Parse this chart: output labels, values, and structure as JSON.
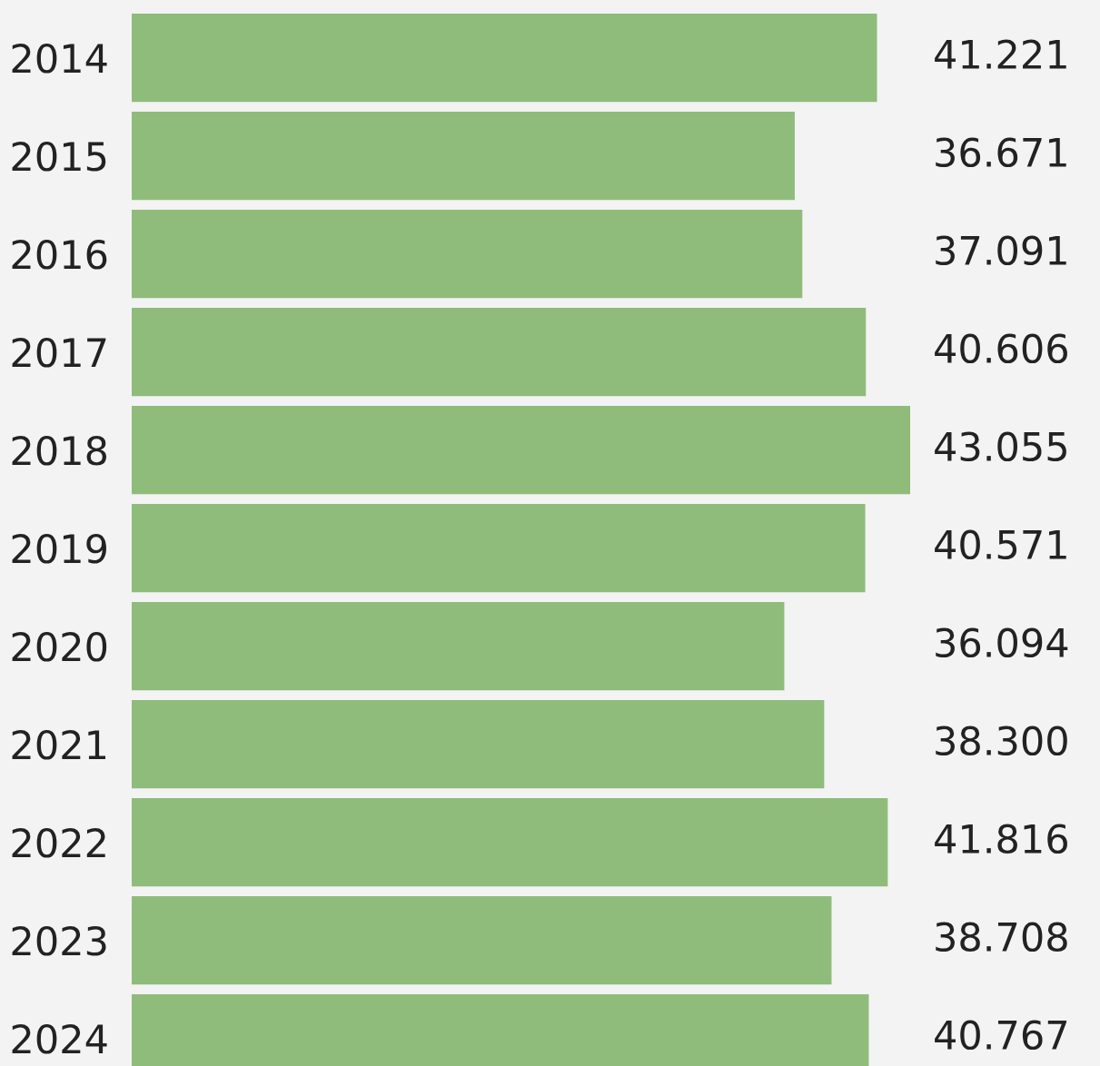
{
  "chart_data": {
    "type": "bar",
    "orientation": "horizontal",
    "categories": [
      "2014",
      "2015",
      "2016",
      "2017",
      "2018",
      "2019",
      "2020",
      "2021",
      "2022",
      "2023",
      "2024"
    ],
    "values": [
      41.221,
      36.671,
      37.091,
      40.606,
      43.055,
      40.571,
      36.094,
      38.3,
      41.816,
      38.708,
      40.767
    ],
    "value_labels": [
      "41.221",
      "36.671",
      "37.091",
      "40.606",
      "43.055",
      "40.571",
      "36.094",
      "38.300",
      "41.816",
      "38.708",
      "40.767"
    ],
    "color": "#8fbc7b",
    "xlim": [
      0,
      43.055
    ],
    "tick_labels": "y",
    "grid": false,
    "legend": false
  }
}
